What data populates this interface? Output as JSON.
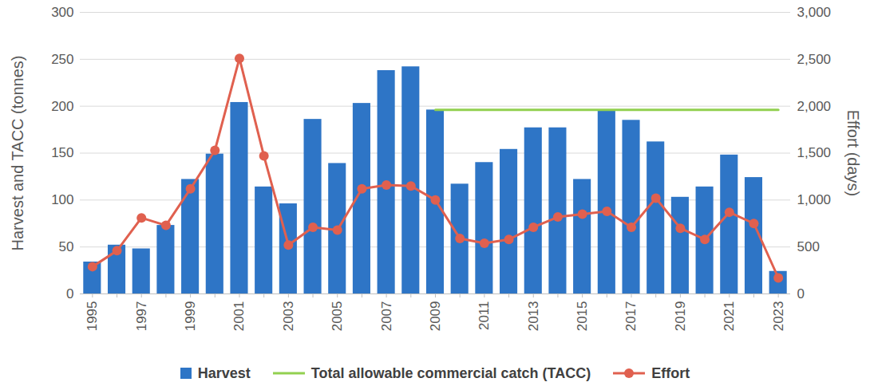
{
  "chart_data": {
    "type": "bar",
    "ylabel": "Harvest and TACC (tonnes)",
    "y2label": "Effort (days)",
    "categories": [
      "1995",
      null,
      "1997",
      null,
      "1999",
      null,
      "2001",
      null,
      "2003",
      null,
      "2005",
      null,
      "2007",
      null,
      "2009",
      null,
      "2011",
      null,
      "2013",
      null,
      "2015",
      null,
      "2017",
      null,
      "2019",
      null,
      "2021",
      null,
      "2023"
    ],
    "series": [
      {
        "name": "Harvest",
        "type": "bar",
        "color": "#2e75c6",
        "values": [
          34,
          52,
          48,
          73,
          122,
          149,
          204,
          114,
          96,
          186,
          139,
          203,
          238,
          242,
          196,
          117,
          140,
          154,
          177,
          177,
          122,
          196,
          185,
          162,
          103,
          114,
          148,
          124,
          24
        ]
      },
      {
        "name": "Total allowable commercial catch (TACC)",
        "type": "line",
        "color": "#92d050",
        "values": [
          null,
          null,
          null,
          null,
          null,
          null,
          null,
          null,
          null,
          null,
          null,
          null,
          null,
          null,
          196,
          196,
          196,
          196,
          196,
          196,
          196,
          196,
          196,
          196,
          196,
          196,
          196,
          196,
          196
        ]
      },
      {
        "name": "Effort",
        "type": "line",
        "marker": "circle",
        "axis": "y2",
        "color": "#e0604f",
        "values": [
          290,
          460,
          810,
          730,
          1120,
          1530,
          2510,
          1470,
          520,
          710,
          680,
          1120,
          1160,
          1150,
          1000,
          590,
          540,
          580,
          710,
          820,
          850,
          880,
          710,
          1020,
          700,
          580,
          870,
          750,
          170
        ]
      }
    ],
    "ylim": [
      0,
      300
    ],
    "yticks": [
      0,
      50,
      100,
      150,
      200,
      250,
      300
    ],
    "y2lim": [
      0,
      3000
    ],
    "y2ticks": [
      0,
      500,
      1000,
      1500,
      2000,
      2500,
      3000
    ],
    "grid": true,
    "legend": "bottom"
  }
}
